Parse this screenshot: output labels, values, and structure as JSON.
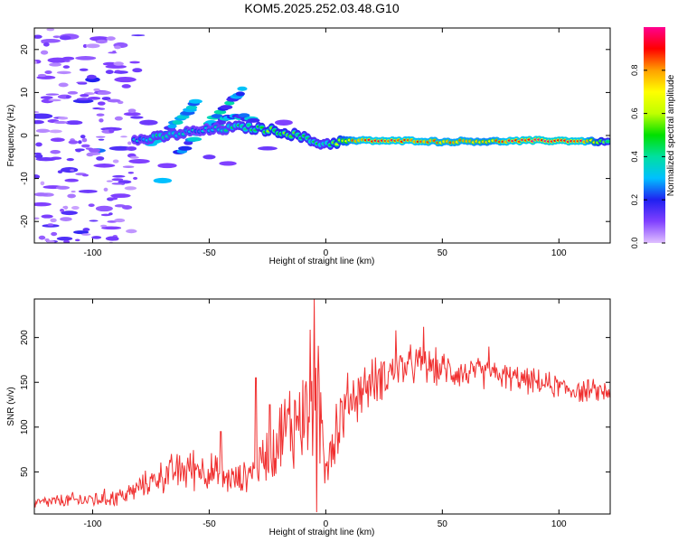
{
  "title": "KOM5.2025.252.03.48.G10",
  "chart_data": [
    {
      "type": "heatmap",
      "title": "KOM5.2025.252.03.48.G10",
      "xlabel": "Height of straight line (km)",
      "ylabel": "Frequency (Hz)",
      "xlim": [
        -125,
        122
      ],
      "ylim": [
        -25,
        25
      ],
      "xticks": [
        -100,
        -50,
        0,
        50,
        100
      ],
      "xtick_labels": [
        "-100",
        "-50",
        "0",
        "50",
        "100"
      ],
      "yticks": [
        -20,
        -10,
        0,
        10,
        20
      ],
      "ytick_labels": [
        "-20",
        "-10",
        "0",
        "10",
        "20"
      ],
      "colorbar": {
        "label": "Normalized spectral amplitude",
        "range": [
          0,
          1
        ],
        "ticks": [
          0.0,
          0.2,
          0.4,
          0.6,
          0.8
        ],
        "tick_labels": [
          "0.0",
          "0.2",
          "0.4",
          "0.6",
          "0.8"
        ],
        "colormap": [
          "#e0c0ff",
          "#8040ff",
          "#2020f0",
          "#00c0ff",
          "#00e0a0",
          "#00e000",
          "#c0ff00",
          "#ffff00",
          "#ffa000",
          "#ff0000",
          "#ff0090"
        ]
      },
      "ridge": [
        {
          "x": -80,
          "f": -1.0,
          "a": 0.3
        },
        {
          "x": -72,
          "f": -0.5,
          "a": 0.4
        },
        {
          "x": -62,
          "f": 0.5,
          "a": 0.35
        },
        {
          "x": -55,
          "f": 1.0,
          "a": 0.3
        },
        {
          "x": -45,
          "f": 1.5,
          "a": 0.35
        },
        {
          "x": -35,
          "f": 2.0,
          "a": 0.45
        },
        {
          "x": -28,
          "f": 1.5,
          "a": 0.5
        },
        {
          "x": -20,
          "f": 1.0,
          "a": 0.55
        },
        {
          "x": -12,
          "f": 0.0,
          "a": 0.5
        },
        {
          "x": -5,
          "f": -1.5,
          "a": 0.45
        },
        {
          "x": 0,
          "f": -2.0,
          "a": 0.4
        },
        {
          "x": 5,
          "f": -1.5,
          "a": 0.6
        },
        {
          "x": 12,
          "f": -1.2,
          "a": 0.8
        },
        {
          "x": 20,
          "f": -1.2,
          "a": 0.9
        },
        {
          "x": 30,
          "f": -1.3,
          "a": 0.9
        },
        {
          "x": 40,
          "f": -1.2,
          "a": 0.85
        },
        {
          "x": 50,
          "f": -1.5,
          "a": 0.8
        },
        {
          "x": 60,
          "f": -1.3,
          "a": 0.8
        },
        {
          "x": 70,
          "f": -1.4,
          "a": 0.75
        },
        {
          "x": 80,
          "f": -1.3,
          "a": 0.9
        },
        {
          "x": 90,
          "f": -1.2,
          "a": 0.95
        },
        {
          "x": 100,
          "f": -1.2,
          "a": 0.95
        },
        {
          "x": 110,
          "f": -1.3,
          "a": 0.9
        },
        {
          "x": 120,
          "f": -1.5,
          "a": 0.5
        }
      ],
      "branches": [
        [
          {
            "x": -63,
            "f": -4.0
          },
          {
            "x": -55,
            "f": 0.0
          },
          {
            "x": -48,
            "f": 4.0
          },
          {
            "x": -40,
            "f": 8.0
          },
          {
            "x": -35,
            "f": 11.0
          }
        ],
        [
          {
            "x": -75,
            "f": -2.0
          },
          {
            "x": -67,
            "f": 1.5
          },
          {
            "x": -60,
            "f": 5.0
          },
          {
            "x": -55,
            "f": 8.5
          }
        ],
        [
          {
            "x": -48,
            "f": 2.0
          },
          {
            "x": -42,
            "f": 4.0
          },
          {
            "x": -36,
            "f": 4.5
          },
          {
            "x": -30,
            "f": 3.5
          }
        ]
      ],
      "scatter": [
        {
          "x": -118,
          "f": 22.0,
          "a": 0.08
        },
        {
          "x": -110,
          "f": 23.0,
          "a": 0.08
        },
        {
          "x": -97,
          "f": 22.5,
          "a": 0.1
        },
        {
          "x": -88,
          "f": 21.0,
          "a": 0.08
        },
        {
          "x": -115,
          "f": 17.5,
          "a": 0.1
        },
        {
          "x": -103,
          "f": 18.0,
          "a": 0.08
        },
        {
          "x": -90,
          "f": 16.0,
          "a": 0.1
        },
        {
          "x": -120,
          "f": 13.5,
          "a": 0.1
        },
        {
          "x": -100,
          "f": 13.0,
          "a": 0.2
        },
        {
          "x": -86,
          "f": 13.0,
          "a": 0.1
        },
        {
          "x": -112,
          "f": 9.0,
          "a": 0.08
        },
        {
          "x": -104,
          "f": 8.0,
          "a": 0.18
        },
        {
          "x": -96,
          "f": 10.0,
          "a": 0.1
        },
        {
          "x": -122,
          "f": 4.5,
          "a": 0.15
        },
        {
          "x": -108,
          "f": 3.0,
          "a": 0.12
        },
        {
          "x": -92,
          "f": 1.5,
          "a": 0.12
        },
        {
          "x": -115,
          "f": -1.0,
          "a": 0.1
        },
        {
          "x": -98,
          "f": -3.5,
          "a": 0.25
        },
        {
          "x": -88,
          "f": -3.0,
          "a": 0.15
        },
        {
          "x": -120,
          "f": -5.5,
          "a": 0.12
        },
        {
          "x": -110,
          "f": -8.0,
          "a": 0.15
        },
        {
          "x": -95,
          "f": -7.0,
          "a": 0.1
        },
        {
          "x": -70,
          "f": -10.5,
          "a": 0.3
        },
        {
          "x": -117,
          "f": -12.0,
          "a": 0.1
        },
        {
          "x": -102,
          "f": -13.0,
          "a": 0.12
        },
        {
          "x": -88,
          "f": -14.0,
          "a": 0.1
        },
        {
          "x": -122,
          "f": -16.0,
          "a": 0.1
        },
        {
          "x": -110,
          "f": -18.0,
          "a": 0.15
        },
        {
          "x": -95,
          "f": -17.0,
          "a": 0.08
        },
        {
          "x": -118,
          "f": -21.0,
          "a": 0.15
        },
        {
          "x": -105,
          "f": -22.5,
          "a": 0.18
        },
        {
          "x": -92,
          "f": -21.5,
          "a": 0.1
        },
        {
          "x": -112,
          "f": -24.0,
          "a": 0.15
        },
        {
          "x": -83,
          "f": 5.0,
          "a": 0.1
        },
        {
          "x": -80,
          "f": -6.0,
          "a": 0.1
        },
        {
          "x": -76,
          "f": 3.0,
          "a": 0.12
        },
        {
          "x": -68,
          "f": -7.0,
          "a": 0.1
        },
        {
          "x": -50,
          "f": -5.0,
          "a": 0.12
        },
        {
          "x": -42,
          "f": -6.5,
          "a": 0.1
        },
        {
          "x": -25,
          "f": -3.0,
          "a": 0.12
        },
        {
          "x": -18,
          "f": 3.0,
          "a": 0.1
        }
      ]
    },
    {
      "type": "line",
      "xlabel": "Height of straight line (km)",
      "ylabel": "SNR (v/v)",
      "xlim": [
        -125,
        122
      ],
      "ylim": [
        3,
        243
      ],
      "xticks": [
        -100,
        -50,
        0,
        50,
        100
      ],
      "xtick_labels": [
        "-100",
        "-50",
        "0",
        "50",
        "100"
      ],
      "yticks": [
        50,
        100,
        150,
        200
      ],
      "ytick_labels": [
        "50",
        "100",
        "150",
        "200"
      ],
      "color": "#f03030",
      "trend": {
        "x": [
          -125,
          -110,
          -95,
          -85,
          -75,
          -65,
          -55,
          -45,
          -38,
          -32,
          -25,
          -18,
          -12,
          -8,
          -5,
          -2,
          0,
          5,
          10,
          20,
          30,
          40,
          50,
          60,
          70,
          80,
          90,
          100,
          110,
          122
        ],
        "y": [
          15,
          18,
          20,
          25,
          40,
          50,
          55,
          45,
          40,
          50,
          70,
          95,
          110,
          120,
          140,
          100,
          70,
          100,
          130,
          150,
          165,
          170,
          165,
          160,
          160,
          155,
          150,
          145,
          140,
          140
        ]
      },
      "noise_amplitude": {
        "x": [
          -125,
          -80,
          -60,
          -45,
          -35,
          -20,
          -8,
          -4,
          0,
          10,
          25,
          45,
          80,
          122
        ],
        "y": [
          8,
          15,
          30,
          25,
          20,
          50,
          90,
          100,
          60,
          40,
          30,
          25,
          18,
          15
        ]
      },
      "spikes": [
        {
          "x": -45,
          "y": 95
        },
        {
          "x": -30,
          "y": 155
        },
        {
          "x": -24,
          "y": 125
        },
        {
          "x": -5,
          "y": 243
        },
        {
          "x": -4,
          "y": 5
        },
        {
          "x": 30,
          "y": 208
        },
        {
          "x": 42,
          "y": 212
        },
        {
          "x": 70,
          "y": 190
        }
      ]
    }
  ]
}
